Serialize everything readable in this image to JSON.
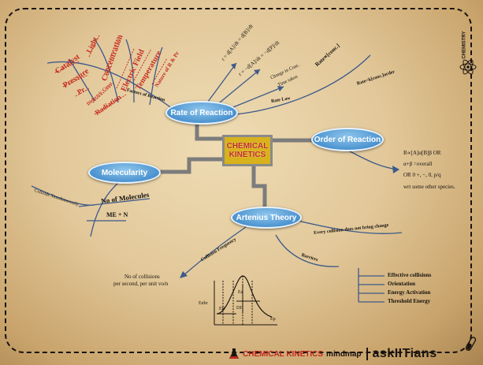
{
  "center": {
    "line1": "CHEMICAL",
    "line2": "KINETICS"
  },
  "nodes": {
    "rate": "Rate of Reaction",
    "order": "Order of Reaction",
    "molecularity": "Molecularity",
    "arrhenius": "Artenius Theory"
  },
  "rate_branch": {
    "factors": [
      "Catalyst",
      "Pressure",
      "Pr",
      "Light",
      "Concentration",
      "Dielectric Const.",
      "Electric Field",
      "Temperature",
      "Nature of R & Pr",
      "Radiation"
    ],
    "factors_label": "Factors of Reaction",
    "formula_1": "r = d[A]/dt = d[B]/dt",
    "formula_2": "r = −d[A]/dt = −d[P]/dt",
    "change_conc": "Change in Conc.",
    "time_taken": "Time taken",
    "rate_conc": "Rate∝[conc.]",
    "rate_k": "Rate=k[conc.]order",
    "rate_law": "Rate Law"
  },
  "order_branch": {
    "line1": "R∝[A]α[B]β  OR",
    "line2": "α+β =overall",
    "line3": "OR 0   +, −, 0, p/q",
    "line4": "wrt some other species."
  },
  "molecularity_branch": {
    "colloids": "Colloids Simultaneously",
    "no_of_molecules": "No of Molecules",
    "me_n": "ME + N"
  },
  "arrhenius_branch": {
    "every_collision": "Every collision does not bring change",
    "collision_frequency": "Collision Frequency",
    "no_collisions_1": "No of collisions",
    "no_collisions_2": "per second, per unit vo/n",
    "barriers": "Barriers",
    "barrier_items": [
      "Effective collisions",
      "Orientation",
      "Energy Activation",
      "Threshold Energy"
    ],
    "graph": {
      "y_label": "Enbr",
      "ea": "Ea",
      "er": "ER",
      "dh": "DH",
      "ep": "Ep"
    }
  },
  "side_label": "CHEMISTRY",
  "footer": {
    "title": "CHEMICAL KINETICS",
    "mindmap": "mindmap",
    "brand": "askIITians"
  },
  "colors": {
    "node_blue": "#4b93d0",
    "center_gold": "#d8b21c",
    "center_text": "#c0281e",
    "factor_red": "#c62a1e",
    "line_blue": "#3d5a8a"
  }
}
